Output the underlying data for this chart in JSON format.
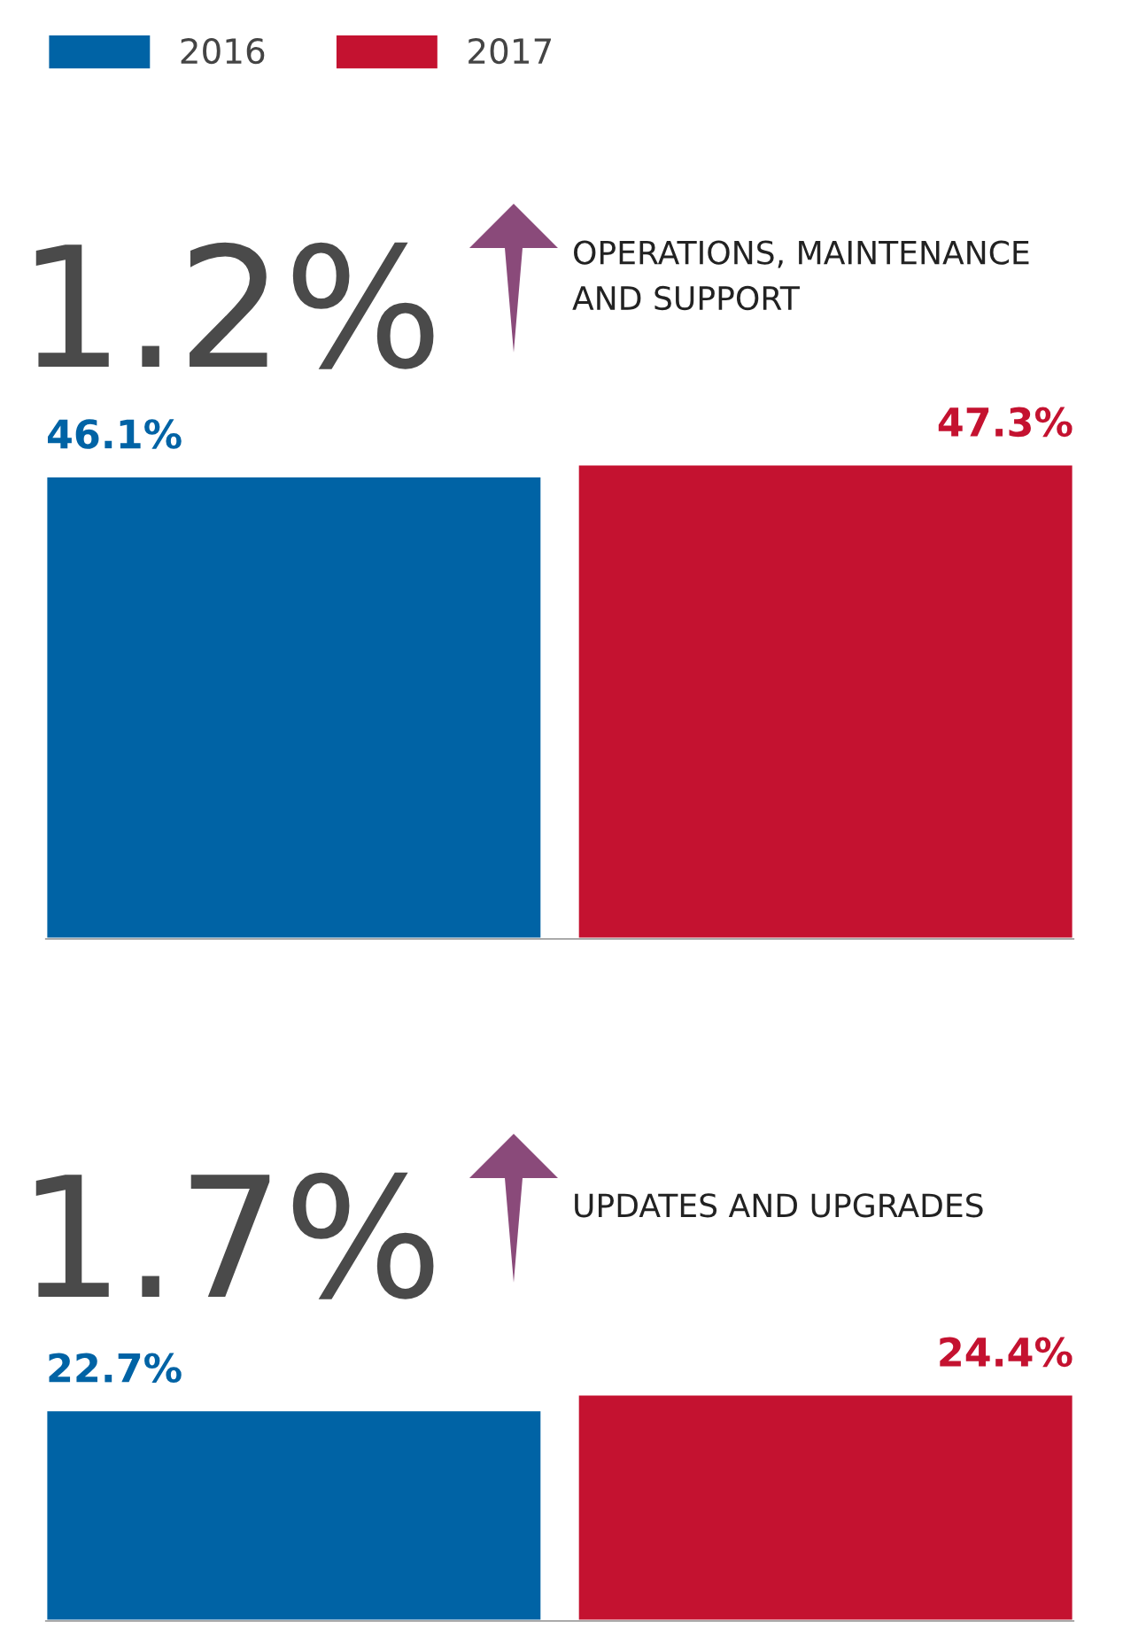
{
  "chart_data": [
    {
      "type": "bar",
      "title": "OPERATIONS, MAINTENANCE\nAND SUPPORT",
      "annotations": [
        "1.2%"
      ],
      "categories": [
        null
      ],
      "series": [
        {
          "name": "2016",
          "color": "#0063a5",
          "values": [
            46.1
          ],
          "value_labels": [
            "46.1%"
          ]
        },
        {
          "name": "2017",
          "color": "#c41230",
          "values": [
            47.3
          ],
          "value_labels": [
            "47.3%"
          ]
        }
      ],
      "ylim": [
        0,
        47.3
      ],
      "legend": "top left"
    },
    {
      "type": "bar",
      "title": "UPDATES AND UPGRADES",
      "annotations": [
        "1.7%"
      ],
      "categories": [
        null
      ],
      "series": [
        {
          "color": "#0063a5",
          "values": [
            22.7
          ],
          "value_labels": [
            "22.7%"
          ]
        },
        {
          "color": "#c41230",
          "values": [
            24.4
          ],
          "value_labels": [
            "24.4%"
          ]
        }
      ],
      "ylim": [
        0,
        24.4
      ]
    }
  ]
}
